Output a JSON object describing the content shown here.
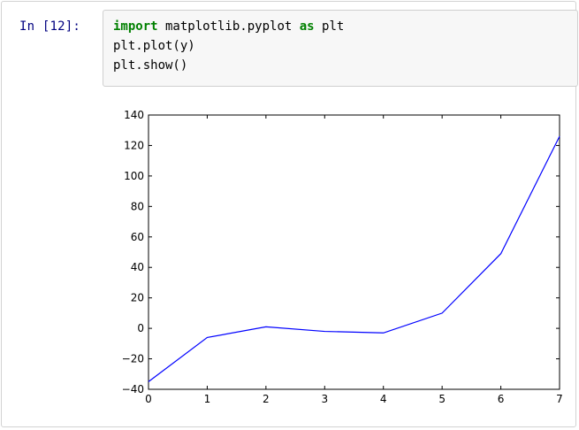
{
  "cell": {
    "prompt": "In [12]:",
    "code_lines": [
      {
        "kw1": "import",
        "mid": " matplotlib.pyplot ",
        "kw2": "as",
        "rest": " plt"
      },
      {
        "kw1": "",
        "mid": "plt.plot(y)",
        "kw2": "",
        "rest": ""
      },
      {
        "kw1": "",
        "mid": "plt.show()",
        "kw2": "",
        "rest": ""
      }
    ]
  },
  "chart_data": {
    "type": "line",
    "x": [
      0,
      1,
      2,
      3,
      4,
      5,
      6,
      7
    ],
    "series": [
      {
        "values": [
          -35,
          -6,
          1,
          -2,
          -3,
          10,
          49,
          126
        ],
        "color": "#0000ff"
      }
    ],
    "xlim": [
      0,
      7
    ],
    "ylim": [
      -40,
      140
    ],
    "xticks": [
      "0",
      "1",
      "2",
      "3",
      "4",
      "5",
      "6",
      "7"
    ],
    "yticks": [
      "140",
      "120",
      "100",
      "80",
      "60",
      "40",
      "20",
      "0",
      "−20",
      "−40"
    ],
    "grid": false,
    "title": "",
    "xlabel": "",
    "ylabel": ""
  }
}
